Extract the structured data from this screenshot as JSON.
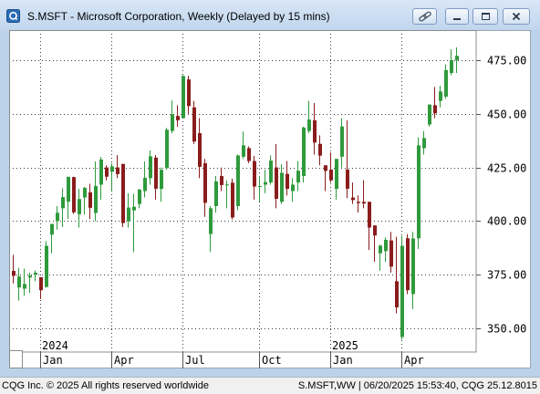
{
  "window": {
    "title": "S.MSFT - Microsoft Corporation, Weekly (Delayed by 15 mins)",
    "app_icon": "cqg-logo-icon",
    "controls": [
      "link-icon",
      "minimize-icon",
      "maximize-icon",
      "close-icon"
    ]
  },
  "footer": {
    "left": "CQG Inc. © 2025 All rights reserved worldwide",
    "right": "S.MSFT,WW | 06/20/2025 15:53:40, CQG 25.12.8015"
  },
  "colors": {
    "title_bar": "#c8dbf1",
    "frame": "#bcd2ea",
    "grid": "#3c3c3c"
  },
  "chart_data": {
    "type": "bar",
    "bar_style": "candlestick",
    "y_axis_side": "right",
    "grid": true,
    "ylim": [
      339,
      489
    ],
    "y_ticks": [
      475,
      450,
      425,
      400,
      375,
      350
    ],
    "y_tick_labels": [
      "475.00",
      "450.00",
      "425.00",
      "400.00",
      "375.00",
      "350.00"
    ],
    "x_ticks": [
      {
        "label": "Jan",
        "date": "2024-01-01"
      },
      {
        "label": "Apr",
        "date": "2024-04-01"
      },
      {
        "label": "Jul",
        "date": "2024-07-01"
      },
      {
        "label": "Oct",
        "date": "2024-10-07"
      },
      {
        "label": "Jan",
        "date": "2025-01-06"
      },
      {
        "label": "Apr",
        "date": "2025-04-07"
      }
    ],
    "year_labels": [
      {
        "label": "2024",
        "date": "2024-01-01"
      },
      {
        "label": "2025",
        "date": "2025-01-06"
      }
    ],
    "colors": {
      "up": "#2f9a3c",
      "down": "#8a1c1c"
    },
    "x": [
      "2023-11-27",
      "2023-12-04",
      "2023-12-11",
      "2023-12-18",
      "2023-12-25",
      "2024-01-01",
      "2024-01-08",
      "2024-01-15",
      "2024-01-22",
      "2024-01-29",
      "2024-02-05",
      "2024-02-12",
      "2024-02-19",
      "2024-02-26",
      "2024-03-04",
      "2024-03-11",
      "2024-03-18",
      "2024-03-25",
      "2024-04-01",
      "2024-04-08",
      "2024-04-15",
      "2024-04-22",
      "2024-04-29",
      "2024-05-06",
      "2024-05-13",
      "2024-05-20",
      "2024-05-27",
      "2024-06-03",
      "2024-06-10",
      "2024-06-17",
      "2024-06-24",
      "2024-07-01",
      "2024-07-08",
      "2024-07-15",
      "2024-07-22",
      "2024-07-29",
      "2024-08-05",
      "2024-08-12",
      "2024-08-19",
      "2024-08-26",
      "2024-09-02",
      "2024-09-09",
      "2024-09-16",
      "2024-09-23",
      "2024-09-30",
      "2024-10-07",
      "2024-10-14",
      "2024-10-21",
      "2024-10-28",
      "2024-11-04",
      "2024-11-11",
      "2024-11-18",
      "2024-11-25",
      "2024-12-02",
      "2024-12-09",
      "2024-12-16",
      "2024-12-23",
      "2024-12-30",
      "2025-01-06",
      "2025-01-13",
      "2025-01-20",
      "2025-01-27",
      "2025-02-03",
      "2025-02-10",
      "2025-02-17",
      "2025-02-24",
      "2025-03-03",
      "2025-03-10",
      "2025-03-17",
      "2025-03-24",
      "2025-03-31",
      "2025-04-07",
      "2025-04-14",
      "2025-04-21",
      "2025-04-28",
      "2025-05-05",
      "2025-05-12",
      "2025-05-19",
      "2025-05-26",
      "2025-06-02",
      "2025-06-09",
      "2025-06-16"
    ],
    "open": [
      376.8,
      369.1,
      368.5,
      373.7,
      375.0,
      373.9,
      369.3,
      393.7,
      400.0,
      406.0,
      409.0,
      420.5,
      403.2,
      411.0,
      413.4,
      403.8,
      417.0,
      425.0,
      423.0,
      425.0,
      426.6,
      400.0,
      405.0,
      408.0,
      414.0,
      420.0,
      429.6,
      415.0,
      424.7,
      442.0,
      449.0,
      448.0,
      466.0,
      453.0,
      441.0,
      427.0,
      394.0,
      407.0,
      421.0,
      417.0,
      417.9,
      407.0,
      430.0,
      434.0,
      428.0,
      416.0,
      417.0,
      418.0,
      425.0,
      409.0,
      422.0,
      414.0,
      418.0,
      421.0,
      442.0,
      447.0,
      436.0,
      426.0,
      424.0,
      415.0,
      430.0,
      424.0,
      411.0,
      409.0,
      409.0,
      409.0,
      398.0,
      385.0,
      386.0,
      391.0,
      372.0,
      346.0,
      392.0,
      366.0,
      392.0,
      434.0,
      445.0,
      454.0,
      456.0,
      458.0,
      469.0,
      475.0
    ],
    "high": [
      384.3,
      378.2,
      377.9,
      376.0,
      377.0,
      373.9,
      390.7,
      398.7,
      407.0,
      415.3,
      420.8,
      420.7,
      415.0,
      416.0,
      417.4,
      427.8,
      429.9,
      426.0,
      427.0,
      430.8,
      426.8,
      413.0,
      412.7,
      415.0,
      427.8,
      432.9,
      430.8,
      425.0,
      443.4,
      456.2,
      454.0,
      468.0,
      467.7,
      456.0,
      448.0,
      429.0,
      407.0,
      421.0,
      425.0,
      419.0,
      419.8,
      431.0,
      441.8,
      434.8,
      430.4,
      421.0,
      424.0,
      430.6,
      435.9,
      426.5,
      428.0,
      420.0,
      428.0,
      444.0,
      456.0,
      455.0,
      440.0,
      426.0,
      432.0,
      429.0,
      448.0,
      447.0,
      418.0,
      412.0,
      419.0,
      409.0,
      398.0,
      389.0,
      392.5,
      395.0,
      392.7,
      393.0,
      394.0,
      395.0,
      439.0,
      442.0,
      454.4,
      462.5,
      463.0,
      473.0,
      480.0,
      481.0
    ],
    "low": [
      371.0,
      362.9,
      365.2,
      366.5,
      372.0,
      363.7,
      369.0,
      385.0,
      396.0,
      397.2,
      401.0,
      403.4,
      397.0,
      403.0,
      401.0,
      400.0,
      410.0,
      419.0,
      414.0,
      420.0,
      397.2,
      397.0,
      385.6,
      406.0,
      411.0,
      417.0,
      410.0,
      409.0,
      424.0,
      441.0,
      444.0,
      448.0,
      450.0,
      436.0,
      420.0,
      402.0,
      385.6,
      404.0,
      414.0,
      406.0,
      400.8,
      405.0,
      429.0,
      427.0,
      410.0,
      409.0,
      413.0,
      417.0,
      406.0,
      408.0,
      412.0,
      409.0,
      414.0,
      418.0,
      441.0,
      431.0,
      426.0,
      414.0,
      418.0,
      410.0,
      425.0,
      410.7,
      408.0,
      404.0,
      406.0,
      386.6,
      381.0,
      376.9,
      381.0,
      376.0,
      357.0,
      344.8,
      366.0,
      359.0,
      387.0,
      431.0,
      444.0,
      448.0,
      453.0,
      457.0,
      468.0,
      469.0
    ],
    "close": [
      374.5,
      374.2,
      370.7,
      374.6,
      376.0,
      367.8,
      388.5,
      398.7,
      403.9,
      411.2,
      420.6,
      404.1,
      410.3,
      415.5,
      406.2,
      416.4,
      428.7,
      420.7,
      425.5,
      421.9,
      399.1,
      406.3,
      406.7,
      414.7,
      420.2,
      430.2,
      415.1,
      423.9,
      442.6,
      449.8,
      447.0,
      467.6,
      453.6,
      437.1,
      425.3,
      408.5,
      406.0,
      418.5,
      416.8,
      417.1,
      401.7,
      430.6,
      435.3,
      428.0,
      416.1,
      416.3,
      418.2,
      428.2,
      410.4,
      422.5,
      415.0,
      417.0,
      423.5,
      443.6,
      447.3,
      436.6,
      430.5,
      423.4,
      419.0,
      429.0,
      444.1,
      415.1,
      409.8,
      408.4,
      408.2,
      397.0,
      393.3,
      388.6,
      391.3,
      378.8,
      359.8,
      388.5,
      367.8,
      391.9,
      435.3,
      438.7,
      454.3,
      450.2,
      460.4,
      470.4,
      475.0,
      477.0
    ]
  }
}
